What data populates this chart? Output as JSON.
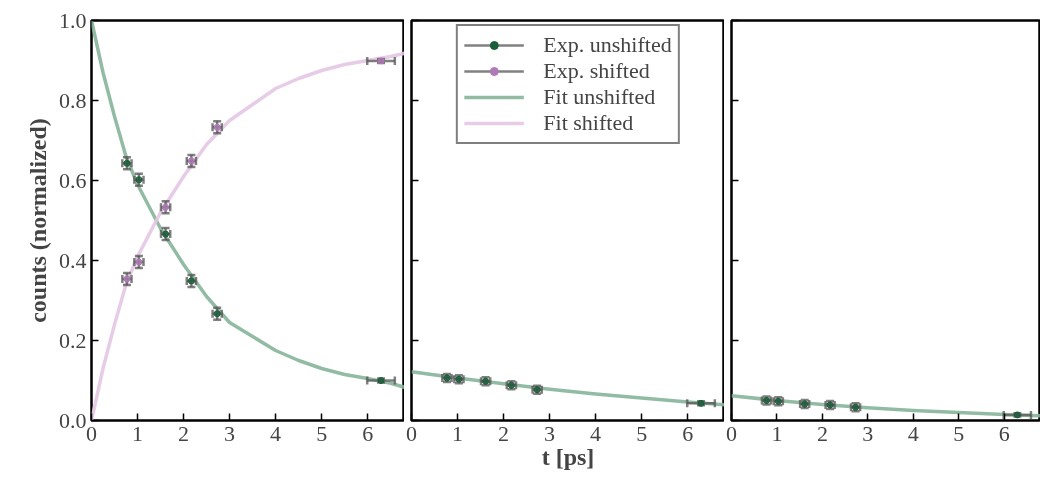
{
  "chart_data": [
    {
      "type": "scatter",
      "legend": "right",
      "ylabel": "counts (normalized)",
      "xlim": [
        0,
        6.8
      ],
      "ylim": [
        0,
        1
      ],
      "xticks": [
        0,
        1,
        2,
        3,
        4,
        5,
        6
      ],
      "yticks": [
        {
          "value": 0,
          "label": "0.0"
        },
        0.2,
        0.4,
        0.6,
        0.8,
        {
          "value": 1,
          "label": "1.0"
        }
      ],
      "series": [
        {
          "name": "Exp. unshifted",
          "marker": "circle",
          "color": "#1a5e3a",
          "x": [
            0.77,
            1.03,
            1.61,
            2.17,
            2.73,
            6.29
          ],
          "values": [
            0.643,
            0.602,
            0.466,
            0.349,
            0.267,
            0.1
          ],
          "errors": [
            0.015,
            0.015,
            0.015,
            0.015,
            0.015,
            0.005
          ],
          "xerrors": [
            0.1,
            0.1,
            0.1,
            0.1,
            0.1,
            0.3
          ]
        },
        {
          "name": "Exp. shifted",
          "marker": "circle",
          "color": "#b07ab8",
          "x": [
            0.77,
            1.03,
            1.61,
            2.17,
            2.73,
            6.29
          ],
          "values": [
            0.354,
            0.396,
            0.533,
            0.649,
            0.733,
            0.899
          ],
          "errors": [
            0.015,
            0.015,
            0.015,
            0.015,
            0.015,
            0.005
          ],
          "xerrors": [
            0.1,
            0.1,
            0.1,
            0.1,
            0.1,
            0.3
          ]
        },
        {
          "name": "Fit unshifted",
          "type": "line",
          "color": "#86b49a",
          "x": [
            0,
            0.25,
            0.5,
            0.75,
            1,
            1.5,
            2,
            2.5,
            3,
            3.5,
            4,
            4.5,
            5,
            5.5,
            6,
            6.5,
            6.8
          ],
          "values": [
            1.0,
            0.87,
            0.76,
            0.66,
            0.59,
            0.48,
            0.39,
            0.31,
            0.245,
            0.21,
            0.175,
            0.15,
            0.13,
            0.115,
            0.105,
            0.093,
            0.083
          ]
        },
        {
          "name": "Fit shifted",
          "type": "line",
          "color": "#e3c6e3",
          "x": [
            0,
            0.25,
            0.5,
            0.75,
            1,
            1.5,
            2,
            2.5,
            3,
            3.5,
            4,
            4.5,
            5,
            5.5,
            6,
            6.5,
            6.8
          ],
          "values": [
            0.0,
            0.13,
            0.24,
            0.34,
            0.41,
            0.52,
            0.61,
            0.69,
            0.75,
            0.79,
            0.83,
            0.855,
            0.875,
            0.89,
            0.9,
            0.91,
            0.918
          ]
        }
      ]
    },
    {
      "type": "scatter",
      "xlabel": "t [ps]",
      "xlim": [
        0,
        6.8
      ],
      "ylim": [
        0,
        1
      ],
      "xticks": [
        0,
        1,
        2,
        3,
        4,
        5,
        6
      ],
      "yticks": [
        0,
        0.2,
        0.4,
        0.6,
        0.8,
        1
      ],
      "tick_labels": "x",
      "series": [
        {
          "marker": "circle",
          "color": "#1a5e3a",
          "x": [
            0.77,
            1.03,
            1.61,
            2.17,
            2.73,
            6.29
          ],
          "values": [
            0.106,
            0.103,
            0.098,
            0.088,
            0.077,
            0.043
          ],
          "errors": [
            0.01,
            0.01,
            0.01,
            0.01,
            0.01,
            0.005
          ],
          "xerrors": [
            0.1,
            0.1,
            0.1,
            0.1,
            0.1,
            0.3
          ]
        },
        {
          "type": "line",
          "color": "#86b49a",
          "x": [
            0,
            1,
            2,
            3,
            4,
            5,
            6,
            6.8
          ],
          "values": [
            0.122,
            0.106,
            0.092,
            0.078,
            0.066,
            0.056,
            0.046,
            0.039
          ]
        }
      ]
    },
    {
      "type": "scatter",
      "xlim": [
        0,
        6.8
      ],
      "ylim": [
        0,
        1
      ],
      "xticks": [
        0,
        1,
        2,
        3,
        4,
        5,
        6
      ],
      "yticks": [
        0,
        0.2,
        0.4,
        0.6,
        0.8,
        1
      ],
      "tick_labels": "x",
      "series": [
        {
          "marker": "circle",
          "color": "#1a5e3a",
          "x": [
            0.77,
            1.03,
            1.61,
            2.17,
            2.73,
            6.29
          ],
          "values": [
            0.05,
            0.048,
            0.041,
            0.039,
            0.033,
            0.014
          ],
          "errors": [
            0.01,
            0.01,
            0.01,
            0.01,
            0.01,
            0.004
          ],
          "xerrors": [
            0.1,
            0.1,
            0.1,
            0.1,
            0.1,
            0.3
          ]
        },
        {
          "type": "line",
          "color": "#86b49a",
          "x": [
            0,
            1,
            2,
            3,
            4,
            5,
            6,
            6.8
          ],
          "values": [
            0.062,
            0.05,
            0.04,
            0.032,
            0.025,
            0.02,
            0.015,
            0.012
          ]
        }
      ]
    }
  ]
}
